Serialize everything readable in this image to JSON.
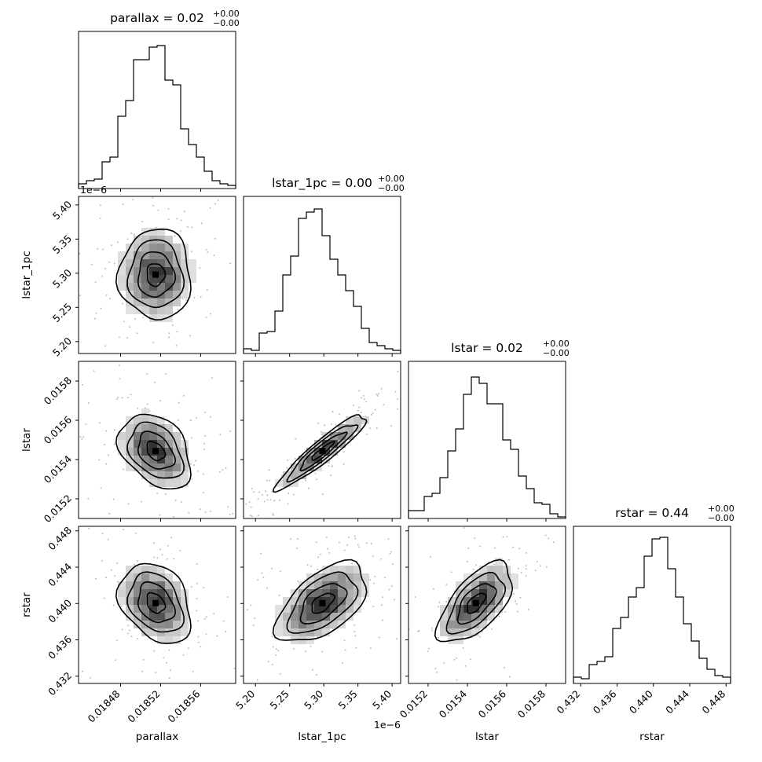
{
  "chart_data": {
    "type": "corner",
    "parameters": [
      {
        "key": "parallax",
        "label": "parallax",
        "title_name": "parallax",
        "title_value": "0.02",
        "title_plus": "+0.00",
        "title_minus": "−0.00",
        "range": [
          0.018438,
          0.018595
        ],
        "ticks": [
          0.01848,
          0.01852,
          0.01856
        ],
        "tick_labels": [
          "0.01848",
          "0.01852",
          "0.01856"
        ],
        "offset_label": ""
      },
      {
        "key": "lstar_1pc",
        "label": "lstar_1pc",
        "title_name": "lstar_1pc",
        "title_value": "0.00",
        "title_plus": "+0.00",
        "title_minus": "−0.00",
        "range": [
          5.1825,
          5.4125
        ],
        "ticks": [
          5.2,
          5.25,
          5.3,
          5.35,
          5.4
        ],
        "tick_labels": [
          "5.20",
          "5.25",
          "5.30",
          "5.35",
          "5.40"
        ],
        "offset_label": "1e−6"
      },
      {
        "key": "lstar",
        "label": "lstar",
        "title_name": "lstar",
        "title_value": "0.02",
        "title_plus": "+0.00",
        "title_minus": "−0.00",
        "range": [
          0.0151,
          0.0159
        ],
        "ticks": [
          0.0152,
          0.0154,
          0.0156,
          0.0158
        ],
        "tick_labels": [
          "0.0152",
          "0.0154",
          "0.0156",
          "0.0158"
        ],
        "offset_label": ""
      },
      {
        "key": "rstar",
        "label": "rstar",
        "title_name": "rstar",
        "title_value": "0.44",
        "title_plus": "+0.00",
        "title_minus": "−0.00",
        "range": [
          0.4312,
          0.4485
        ],
        "ticks": [
          0.432,
          0.436,
          0.44,
          0.444,
          0.448
        ],
        "tick_labels": [
          "0.432",
          "0.436",
          "0.440",
          "0.444",
          "0.448"
        ],
        "offset_label": ""
      }
    ],
    "histograms": {
      "parallax": [
        0.03,
        0.05,
        0.06,
        0.17,
        0.2,
        0.46,
        0.56,
        0.82,
        0.82,
        0.9,
        0.91,
        0.69,
        0.66,
        0.38,
        0.28,
        0.2,
        0.11,
        0.05,
        0.03,
        0.02
      ],
      "lstar_1pc": [
        0.03,
        0.02,
        0.13,
        0.14,
        0.27,
        0.5,
        0.62,
        0.86,
        0.9,
        0.92,
        0.75,
        0.6,
        0.5,
        0.4,
        0.3,
        0.16,
        0.07,
        0.05,
        0.03,
        0.02
      ],
      "lstar": [
        0.05,
        0.05,
        0.14,
        0.16,
        0.26,
        0.43,
        0.57,
        0.79,
        0.9,
        0.86,
        0.73,
        0.73,
        0.5,
        0.44,
        0.27,
        0.19,
        0.1,
        0.09,
        0.03,
        0.01
      ],
      "rstar": [
        0.04,
        0.03,
        0.12,
        0.14,
        0.17,
        0.35,
        0.42,
        0.55,
        0.61,
        0.81,
        0.92,
        0.93,
        0.73,
        0.55,
        0.38,
        0.27,
        0.16,
        0.09,
        0.05,
        0.04
      ]
    },
    "pairs": [
      {
        "x": "parallax",
        "y": "lstar_1pc",
        "mean": [
          0.018515,
          5.298
        ],
        "sd": [
          1.8e-05,
          0.033
        ],
        "rho": 0.0
      },
      {
        "x": "parallax",
        "y": "lstar",
        "mean": [
          0.018515,
          0.015443
        ],
        "sd": [
          1.8e-05,
          9.5e-05
        ],
        "rho": -0.35
      },
      {
        "x": "parallax",
        "y": "rstar",
        "mean": [
          0.018515,
          0.44005
        ],
        "sd": [
          1.8e-05,
          0.0022
        ],
        "rho": -0.3
      },
      {
        "x": "lstar_1pc",
        "y": "lstar",
        "mean": [
          5.298,
          0.015443
        ],
        "sd": [
          0.033,
          9.5e-05
        ],
        "rho": 0.93
      },
      {
        "x": "lstar_1pc",
        "y": "rstar",
        "mean": [
          5.298,
          0.44005
        ],
        "sd": [
          0.033,
          0.0022
        ],
        "rho": 0.55
      },
      {
        "x": "lstar",
        "y": "rstar",
        "mean": [
          0.015443,
          0.44005
        ],
        "sd": [
          9.5e-05,
          0.0022
        ],
        "rho": 0.62
      }
    ],
    "contour_levels_sigma": [
      0.5,
      1.0,
      1.5,
      2.0
    ],
    "grid": false
  }
}
